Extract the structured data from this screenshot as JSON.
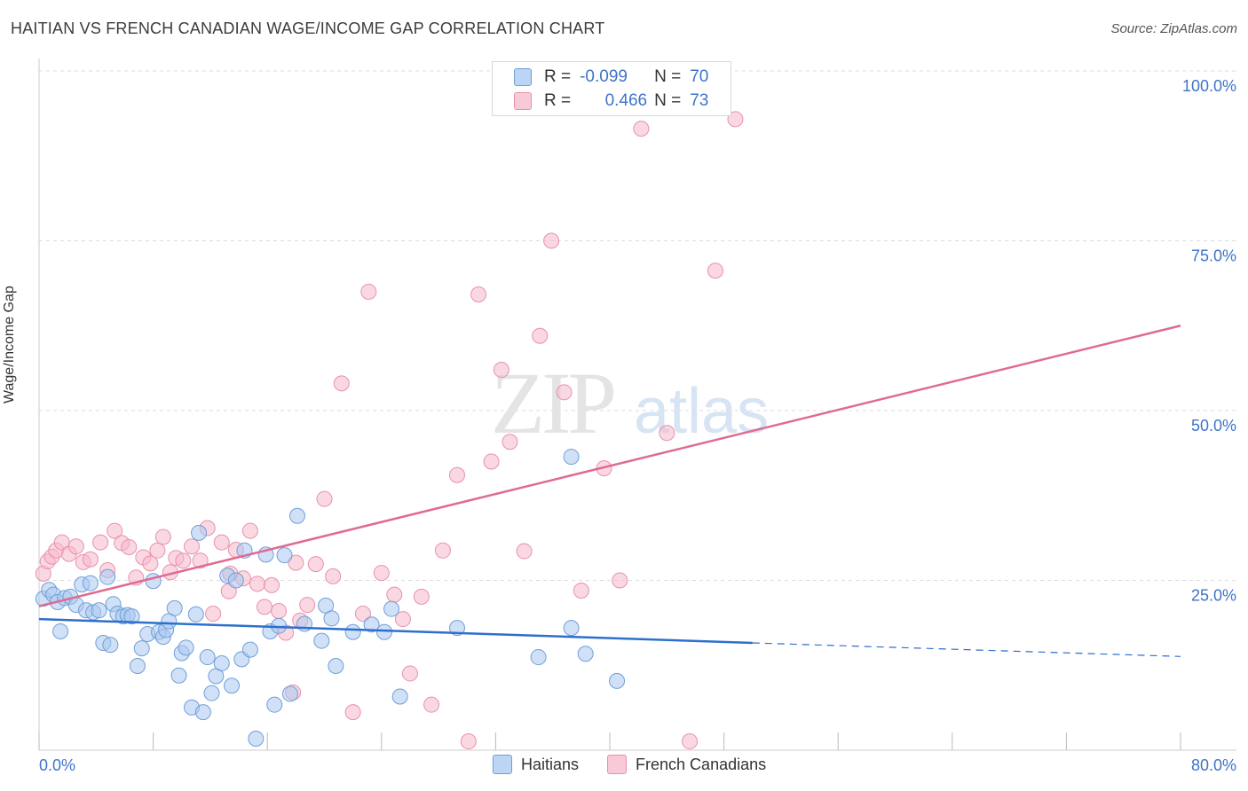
{
  "title": "HAITIAN VS FRENCH CANADIAN WAGE/INCOME GAP CORRELATION CHART",
  "source": "Source: ZipAtlas.com",
  "watermark": {
    "zip": "ZIP",
    "atlas": "atlas"
  },
  "legend": {
    "haitians": {
      "r_label": "R =",
      "r_value": "-0.099",
      "n_label": "N =",
      "n_value": "70"
    },
    "french": {
      "r_label": "R =",
      "r_value": "0.466",
      "n_label": "N =",
      "n_value": "73"
    }
  },
  "bottom_legend": {
    "haitians": "Haitians",
    "french": "French Canadians"
  },
  "colors": {
    "haitian_fill": "#a9c8f0",
    "haitian_stroke": "#6f9fd8",
    "haitian_line": "#2e6fcc",
    "french_fill": "#f5b8ca",
    "french_stroke": "#e891ad",
    "french_line": "#e06a93",
    "tick_label": "#3f73c9",
    "grid": "#dddddd"
  },
  "chart_data": {
    "type": "scatter",
    "title": "HAITIAN VS FRENCH CANADIAN WAGE/INCOME GAP CORRELATION CHART",
    "xlabel": "",
    "ylabel": "Wage/Income Gap",
    "xlim": [
      0,
      80
    ],
    "ylim": [
      0,
      100
    ],
    "x_tick_labels": [
      "0.0%",
      "80.0%"
    ],
    "y_ticks": [
      25,
      50,
      75,
      100
    ],
    "y_tick_labels": [
      "25.0%",
      "50.0%",
      "75.0%",
      "100.0%"
    ],
    "grid": true,
    "legend_position": "top-center",
    "series": [
      {
        "name": "Haitians",
        "points": [
          [
            0.3,
            22.3
          ],
          [
            0.7,
            23.6
          ],
          [
            1.0,
            22.9
          ],
          [
            1.3,
            21.8
          ],
          [
            1.5,
            17.5
          ],
          [
            1.8,
            22.4
          ],
          [
            2.2,
            22.6
          ],
          [
            2.6,
            21.4
          ],
          [
            3.0,
            24.4
          ],
          [
            3.3,
            20.6
          ],
          [
            3.6,
            24.6
          ],
          [
            3.8,
            20.3
          ],
          [
            4.2,
            20.6
          ],
          [
            4.5,
            15.8
          ],
          [
            4.8,
            25.5
          ],
          [
            5.2,
            21.5
          ],
          [
            5.5,
            20.1
          ],
          [
            5.9,
            19.7
          ],
          [
            6.2,
            19.9
          ],
          [
            6.5,
            19.7
          ],
          [
            6.9,
            12.4
          ],
          [
            7.2,
            15.0
          ],
          [
            7.6,
            17.1
          ],
          [
            8.0,
            24.9
          ],
          [
            8.4,
            17.4
          ],
          [
            8.7,
            16.7
          ],
          [
            8.9,
            17.7
          ],
          [
            9.5,
            20.9
          ],
          [
            9.8,
            11.0
          ],
          [
            10.0,
            14.3
          ],
          [
            10.3,
            15.1
          ],
          [
            10.7,
            6.3
          ],
          [
            11.0,
            20.0
          ],
          [
            11.5,
            5.6
          ],
          [
            11.8,
            13.7
          ],
          [
            12.1,
            8.4
          ],
          [
            12.4,
            10.9
          ],
          [
            12.8,
            12.8
          ],
          [
            13.2,
            25.7
          ],
          [
            13.5,
            9.5
          ],
          [
            13.8,
            25.0
          ],
          [
            14.2,
            13.4
          ],
          [
            14.8,
            14.8
          ],
          [
            15.2,
            1.7
          ],
          [
            15.9,
            28.8
          ],
          [
            16.2,
            17.5
          ],
          [
            16.5,
            6.7
          ],
          [
            16.8,
            18.3
          ],
          [
            17.2,
            28.7
          ],
          [
            17.6,
            8.3
          ],
          [
            18.1,
            34.5
          ],
          [
            18.6,
            18.6
          ],
          [
            19.8,
            16.1
          ],
          [
            20.1,
            21.3
          ],
          [
            20.5,
            19.4
          ],
          [
            22.0,
            17.4
          ],
          [
            23.3,
            18.5
          ],
          [
            24.2,
            17.4
          ],
          [
            24.7,
            20.8
          ],
          [
            25.3,
            7.9
          ],
          [
            11.2,
            32.0
          ],
          [
            14.4,
            29.4
          ],
          [
            5.0,
            15.5
          ],
          [
            9.1,
            19.0
          ],
          [
            20.8,
            12.4
          ],
          [
            29.3,
            18.0
          ],
          [
            35.0,
            13.7
          ],
          [
            37.3,
            18.0
          ],
          [
            38.3,
            14.2
          ],
          [
            40.5,
            10.2
          ],
          [
            37.3,
            43.2
          ]
        ]
      },
      {
        "name": "French Canadians",
        "points": [
          [
            0.3,
            26.0
          ],
          [
            0.6,
            27.8
          ],
          [
            0.9,
            28.5
          ],
          [
            1.2,
            29.4
          ],
          [
            1.6,
            30.6
          ],
          [
            2.1,
            28.9
          ],
          [
            2.6,
            30.0
          ],
          [
            3.1,
            27.7
          ],
          [
            3.6,
            28.1
          ],
          [
            4.3,
            30.6
          ],
          [
            4.8,
            26.5
          ],
          [
            5.3,
            32.3
          ],
          [
            5.8,
            30.5
          ],
          [
            6.3,
            29.9
          ],
          [
            6.8,
            25.4
          ],
          [
            7.3,
            28.4
          ],
          [
            7.8,
            27.5
          ],
          [
            8.3,
            29.4
          ],
          [
            8.7,
            31.4
          ],
          [
            9.2,
            26.2
          ],
          [
            9.6,
            28.3
          ],
          [
            10.1,
            27.9
          ],
          [
            10.7,
            30.0
          ],
          [
            11.3,
            27.9
          ],
          [
            11.8,
            32.7
          ],
          [
            12.2,
            20.1
          ],
          [
            12.8,
            30.6
          ],
          [
            13.3,
            23.4
          ],
          [
            13.8,
            29.5
          ],
          [
            14.3,
            25.3
          ],
          [
            14.8,
            32.3
          ],
          [
            15.3,
            24.5
          ],
          [
            15.8,
            21.1
          ],
          [
            16.3,
            24.3
          ],
          [
            16.8,
            20.5
          ],
          [
            17.3,
            17.3
          ],
          [
            17.8,
            8.5
          ],
          [
            18.3,
            19.1
          ],
          [
            18.8,
            21.4
          ],
          [
            19.4,
            27.4
          ],
          [
            20.0,
            37.0
          ],
          [
            20.6,
            25.6
          ],
          [
            21.2,
            54.0
          ],
          [
            22.0,
            5.6
          ],
          [
            22.7,
            20.1
          ],
          [
            23.1,
            67.5
          ],
          [
            24.0,
            26.1
          ],
          [
            24.9,
            22.9
          ],
          [
            25.5,
            19.3
          ],
          [
            26.0,
            11.3
          ],
          [
            26.8,
            22.6
          ],
          [
            27.5,
            6.7
          ],
          [
            28.3,
            29.4
          ],
          [
            29.3,
            40.5
          ],
          [
            30.1,
            1.3
          ],
          [
            30.8,
            67.1
          ],
          [
            31.7,
            42.5
          ],
          [
            32.4,
            56.0
          ],
          [
            33.0,
            45.4
          ],
          [
            34.0,
            29.3
          ],
          [
            35.1,
            61.0
          ],
          [
            35.9,
            75.0
          ],
          [
            36.8,
            52.7
          ],
          [
            38.0,
            23.5
          ],
          [
            39.6,
            41.5
          ],
          [
            40.7,
            25.0
          ],
          [
            42.2,
            91.5
          ],
          [
            44.0,
            46.7
          ],
          [
            45.6,
            1.3
          ],
          [
            47.4,
            70.6
          ],
          [
            48.8,
            92.9
          ],
          [
            13.4,
            26.0
          ],
          [
            18.0,
            27.6
          ]
        ]
      }
    ],
    "trend_lines": [
      {
        "name": "Haitians",
        "x": [
          0,
          50,
          80
        ],
        "y": [
          19.3,
          15.8,
          13.8
        ],
        "dashed_from_x": 50
      },
      {
        "name": "French Canadians",
        "x": [
          0,
          80
        ],
        "y": [
          21.2,
          62.5
        ]
      }
    ]
  }
}
